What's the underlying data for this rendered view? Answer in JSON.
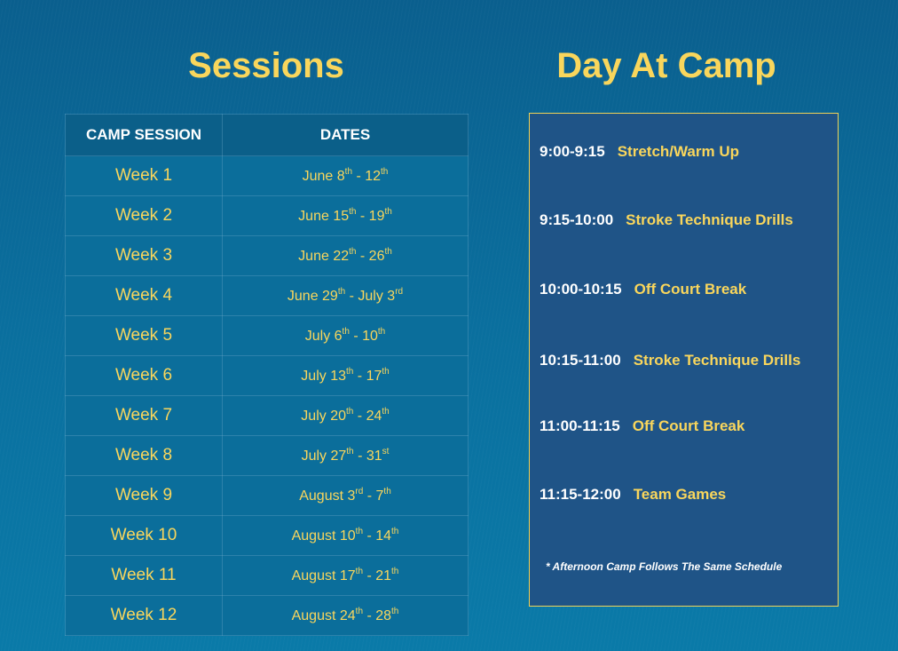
{
  "sessions": {
    "title": "Sessions",
    "headers": [
      "CAMP SESSION",
      "DATES"
    ],
    "rows": [
      {
        "week": "Week 1",
        "start": "June 8",
        "start_sup": "th",
        "end": "12",
        "end_sup": "th"
      },
      {
        "week": "Week 2",
        "start": "June 15",
        "start_sup": "th",
        "end": "19",
        "end_sup": "th"
      },
      {
        "week": "Week 3",
        "start": "June 22",
        "start_sup": "th",
        "end": "26",
        "end_sup": "th"
      },
      {
        "week": "Week 4",
        "start": "June 29",
        "start_sup": "th",
        "end": "July 3",
        "end_sup": "rd"
      },
      {
        "week": "Week 5",
        "start": "July 6",
        "start_sup": "th",
        "end": "10",
        "end_sup": "th"
      },
      {
        "week": "Week 6",
        "start": "July 13",
        "start_sup": "th",
        "end": "17",
        "end_sup": "th"
      },
      {
        "week": "Week 7",
        "start": "July 20",
        "start_sup": "th",
        "end": "24",
        "end_sup": "th"
      },
      {
        "week": "Week 8",
        "start": "July 27",
        "start_sup": "th",
        "end": "31",
        "end_sup": "st"
      },
      {
        "week": "Week 9",
        "start": "August 3",
        "start_sup": "rd",
        "end": "7",
        "end_sup": "th"
      },
      {
        "week": "Week 10",
        "start": "August 10",
        "start_sup": "th",
        "end": "14",
        "end_sup": "th"
      },
      {
        "week": "Week 11",
        "start": "August 17",
        "start_sup": "th",
        "end": "21",
        "end_sup": "th"
      },
      {
        "week": "Week 12",
        "start": "August 24",
        "start_sup": "th",
        "end": "28",
        "end_sup": "th"
      }
    ]
  },
  "day": {
    "title": "Day At Camp",
    "items": [
      {
        "time": "9:00-9:15",
        "activity": "Stretch/Warm Up"
      },
      {
        "time": "9:15-10:00",
        "activity": "Stroke Technique Drills"
      },
      {
        "time": "10:00-10:15",
        "activity": "Off Court Break"
      },
      {
        "time": "10:15-11:00",
        "activity": "Stroke Technique Drills"
      },
      {
        "time": "11:00-11:15",
        "activity": "Off Court Break"
      },
      {
        "time": "11:15-12:00",
        "activity": "Team Games"
      }
    ],
    "note": "*  Afternoon Camp Follows The Same Schedule"
  },
  "colors": {
    "accent": "#f9d65c",
    "box": "#1f5487",
    "background": "#0a6f9e"
  }
}
